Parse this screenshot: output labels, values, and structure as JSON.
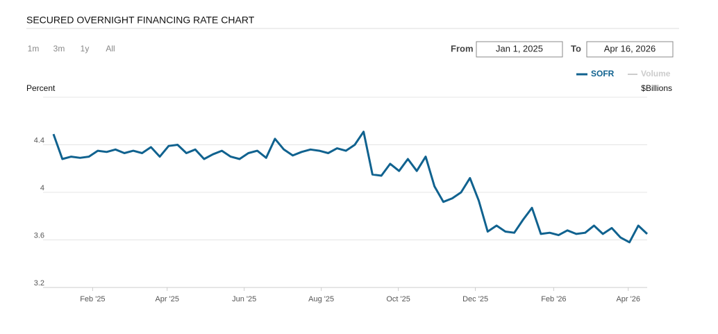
{
  "chart_data": {
    "type": "line",
    "title": "SECURED OVERNIGHT FINANCING RATE CHART",
    "range_buttons": [
      "1m",
      "3m",
      "1y",
      "All"
    ],
    "from_label": "From",
    "to_label": "To",
    "from": "Jan 1, 2025",
    "to": "Apr 16, 2026",
    "y_label": "Percent",
    "y2_label": "$Billions",
    "series": [
      {
        "name": "SOFR",
        "color": "#10628f",
        "values": [
          4.49,
          4.28,
          4.3,
          4.29,
          4.3,
          4.35,
          4.34,
          4.36,
          4.33,
          4.35,
          4.33,
          4.38,
          4.3,
          4.39,
          4.4,
          4.33,
          4.36,
          4.28,
          4.32,
          4.35,
          4.3,
          4.28,
          4.33,
          4.35,
          4.29,
          4.45,
          4.36,
          4.31,
          4.34,
          4.36,
          4.35,
          4.33,
          4.37,
          4.35,
          4.4,
          4.51,
          4.15,
          4.14,
          4.24,
          4.18,
          4.28,
          4.18,
          4.3,
          4.05,
          3.92,
          3.95,
          4.0,
          4.12,
          3.93,
          3.67,
          3.72,
          3.67,
          3.66,
          3.77,
          3.87,
          3.65,
          3.66,
          3.64,
          3.68,
          3.65,
          3.66,
          3.72,
          3.65,
          3.7,
          3.62,
          3.58,
          3.72,
          3.65
        ]
      }
    ],
    "inactive_series": {
      "name": "Volume",
      "color": "#cccccc"
    },
    "ylim": [
      3.2,
      4.8
    ],
    "yticks": [
      3.2,
      3.6,
      4,
      4.4
    ],
    "xticks": [
      {
        "value": "2025-02",
        "label": "Feb '25"
      },
      {
        "value": "2025-04",
        "label": "Apr '25"
      },
      {
        "value": "2025-06",
        "label": "Jun '25"
      },
      {
        "value": "2025-08",
        "label": "Aug '25"
      },
      {
        "value": "2025-10",
        "label": "Oct '25"
      },
      {
        "value": "2025-12",
        "label": "Dec '25"
      },
      {
        "value": "2026-02",
        "label": "Feb '26"
      },
      {
        "value": "2026-04",
        "label": "Apr '26"
      }
    ],
    "grid": true
  }
}
